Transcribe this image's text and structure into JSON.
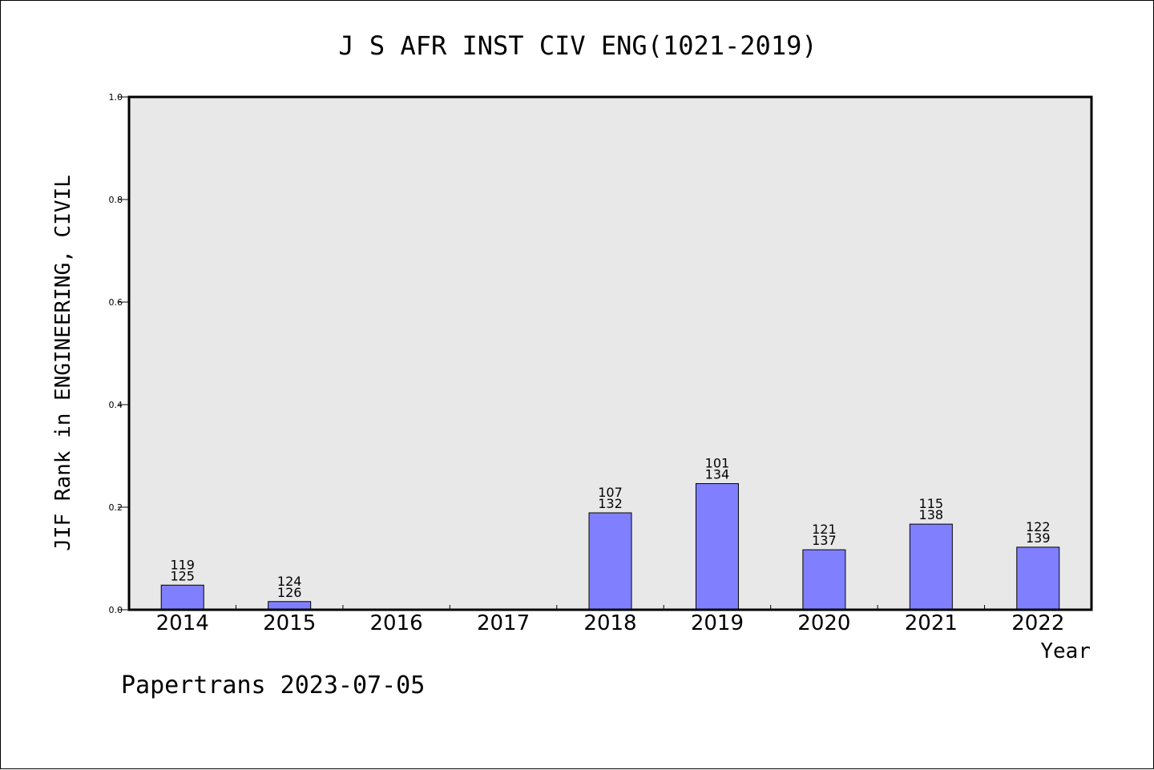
{
  "chart_data": {
    "type": "bar",
    "title": "J S AFR INST CIV ENG(1021-2019)",
    "xlabel": "Year",
    "ylabel": "JIF Rank in ENGINEERING, CIVIL",
    "categories": [
      "2014",
      "2015",
      "2016",
      "2017",
      "2018",
      "2019",
      "2020",
      "2021",
      "2022"
    ],
    "values": [
      0.048,
      0.016,
      null,
      null,
      0.189,
      0.246,
      0.117,
      0.167,
      0.122
    ],
    "rank_labels": [
      [
        "119",
        "125"
      ],
      [
        "124",
        "126"
      ],
      null,
      null,
      [
        "107",
        "132"
      ],
      [
        "101",
        "134"
      ],
      [
        "121",
        "137"
      ],
      [
        "115",
        "138"
      ],
      [
        "122",
        "139"
      ]
    ],
    "ylim": [
      0,
      1.0
    ],
    "yticks": [
      "0.0",
      "0.2",
      "0.4",
      "0.6",
      "0.8",
      "1.0"
    ],
    "colors": {
      "bar": "#8080ff",
      "plot_bg": "#e8e8e8"
    },
    "grid": false
  },
  "footer": "Papertrans 2023-07-05"
}
